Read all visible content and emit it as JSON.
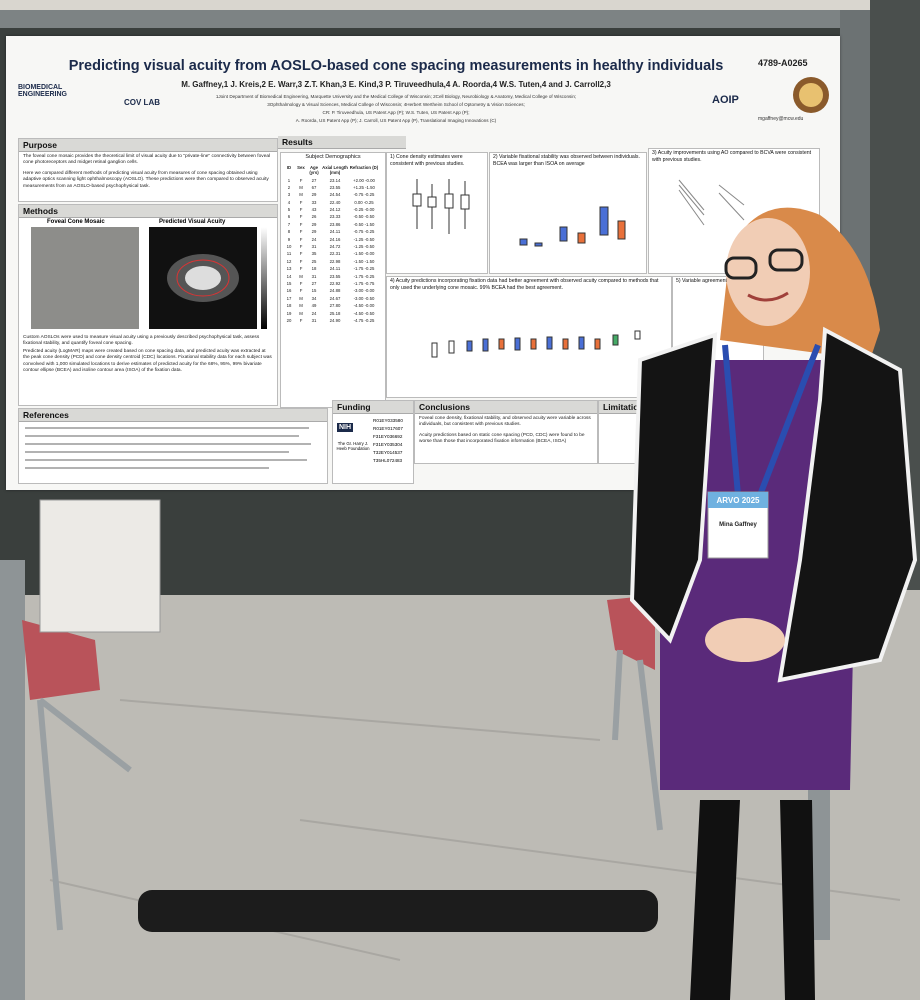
{
  "poster": {
    "id": "4789-A0265",
    "title": "Predicting visual acuity from AOSLO-based cone spacing measurements in healthy individuals",
    "authors": "M. Gaffney,1 J. Kreis,2 E. Warr,3 Z.T. Khan,3 E. Kind,3 P. Tiruveedhula,4 A. Roorda,4 W.S. Tuten,4 and J. Carroll2,3",
    "affiliations": [
      "1Joint Department of Biomedical Engineering, Marquette University and the Medical College of Wisconsin; 2Cell Biology, Neurobiology & Anatomy, Medical College of Wisconsin;",
      "3Ophthalmology & Visual Sciences, Medical College of Wisconsin; 4Herbert Wertheim School of Optometry & Vision Sciences;",
      "CR: P. Tiruveedhula, US Patent App (P); W.S. Tuten, US Patent App (P);",
      "A. Roorda, US Patent App (P); J. Carroll, US Patent App (P), Translational Imaging Innovations (C)"
    ],
    "contact": "mgaffney@mcw.edu",
    "logos": [
      "BIOMEDICAL ENGINEERING",
      "COV LAB",
      "AOIP"
    ],
    "purpose": {
      "heading": "Purpose",
      "text": [
        "The foveal cone mosaic provides the theoretical limit of visual acuity due to \"private-line\" connectivity between foveal cone photoreceptors and midget retinal ganglion cells.",
        "Here we compared different methods of predicting visual acuity from measures of cone spacing obtained using adaptive optics scanning light ophthalmoscopy (AOSLO). These predictions were then compared to observed acuity measurements from an AOSLO-based psychophysical task."
      ]
    },
    "methods": {
      "heading": "Methods",
      "figures": [
        "Foveal Cone Mosaic",
        "Predicted Visual Acuity"
      ],
      "bullets": [
        "Custom AOSLOs were used to measure visual acuity using a previously described psychophysical task, assess fixational stability, and quantify foveal cone spacing.",
        "Predicted acuity (LogMAR) maps were created based on cone spacing data, and predicted acuity was extracted at the peak cone density (PCD) and cone density centroid (CDC) locations. Fixational stability data for each subject was convolved with 1,000 simulated locations to derive estimates of predicted acuity for the 68%, 95%, 99% bivariate contour ellipse (BCEA) and isoline contour area (ISOA) of the fixation data."
      ]
    },
    "references": {
      "heading": "References"
    },
    "results": {
      "heading": "Results",
      "table": {
        "title": "Subject Demographics",
        "header": [
          "ID",
          "Sex",
          "Age (yrs)",
          "Axial Length (mm)",
          "Refraction (D)"
        ],
        "rows": [
          [
            "1",
            "F",
            "27",
            "23.14",
            "+2.00 -0.00"
          ],
          [
            "2",
            "M",
            "67",
            "23.55",
            "+1.25 -1.50"
          ],
          [
            "3",
            "M",
            "29",
            "24.54",
            "-0.75 -0.25"
          ],
          [
            "4",
            "F",
            "33",
            "22.40",
            "0.00 -0.25"
          ],
          [
            "5",
            "F",
            "43",
            "24.12",
            "-0.25 -0.00"
          ],
          [
            "6",
            "F",
            "26",
            "23.33",
            "-0.50 -0.50"
          ],
          [
            "7",
            "F",
            "29",
            "23.86",
            "-0.50 -1.50"
          ],
          [
            "8",
            "F",
            "29",
            "24.11",
            "-0.75 -0.25"
          ],
          [
            "9",
            "F",
            "24",
            "24.16",
            "-1.25 -0.50"
          ],
          [
            "10",
            "F",
            "31",
            "24.72",
            "-1.25 -0.50"
          ],
          [
            "11",
            "F",
            "35",
            "22.31",
            "-1.50 -0.00"
          ],
          [
            "12",
            "F",
            "25",
            "22.98",
            "-1.50 -1.50"
          ],
          [
            "13",
            "F",
            "18",
            "24.11",
            "-1.75 -0.25"
          ],
          [
            "14",
            "M",
            "31",
            "23.55",
            "-1.75 -0.25"
          ],
          [
            "15",
            "F",
            "27",
            "22.92",
            "-1.75 -0.75"
          ],
          [
            "16",
            "F",
            "15",
            "24.88",
            "-3.00 -0.00"
          ],
          [
            "17",
            "M",
            "34",
            "24.67",
            "-3.00 -0.50"
          ],
          [
            "18",
            "M",
            "49",
            "27.80",
            "-4.50 -0.00"
          ],
          [
            "19",
            "M",
            "24",
            "25.18",
            "-4.50 -0.50"
          ],
          [
            "20",
            "F",
            "31",
            "24.90",
            "-4.75 -0.25"
          ]
        ]
      },
      "panels": [
        "1) Cone density estimates were consistent with previous studies.",
        "2) Variable fixational stability was observed between individuals. BCEA was larger than ISOA on average",
        "3) Acuity improvements using AO compared to BCVA were consistent with previous studies.",
        "4) Acuity predictions incorporating fixation data had better agreement with observed acuity compared to methods that only used the underlying cone mosaic. 99% BCEA had the best agreement.",
        "5) Variable agreement..."
      ]
    },
    "funding": {
      "heading": "Funding",
      "funders": [
        "NIH",
        "The Gr. Harry J. Heeb Foundation"
      ],
      "grants": [
        "R01EY033580",
        "R01EY017607",
        "F31EY036692",
        "F31EY035304",
        "T32EY014537",
        "T35HL072483"
      ]
    },
    "conclusions": {
      "heading": "Conclusions",
      "bullets": [
        "Foveal cone density, fixational stability, and observed acuity were variable across individuals, but consistent with previous studies.",
        "Acuity predictions based on static cone spacing (PCD, CDC) were found to be worse than those that incorporated fixation information (BCEA, ISOA)"
      ]
    },
    "limitations": {
      "heading": "Limitations"
    }
  },
  "badge": {
    "event": "ARVO 2025",
    "name": "Mina Gaffney"
  }
}
